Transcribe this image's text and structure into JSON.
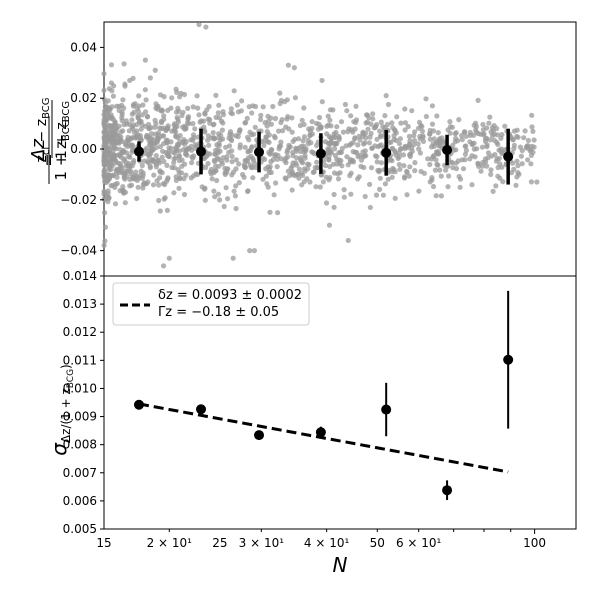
{
  "colors": {
    "scatter": "#9a9a9a",
    "points": "#000000",
    "fit_line": "#000000",
    "legend_border": "#cccccc"
  },
  "chart_data": [
    {
      "type": "scatter",
      "panel": "top",
      "xscale": "log",
      "xlim": [
        15,
        120
      ],
      "ylim": [
        -0.05,
        0.05
      ],
      "yticks": [
        "−0.04",
        "−0.02",
        "0.00",
        "0.02",
        "0.04"
      ],
      "ylabel": "Δz / (1 + z_BCG) = (z_cl − z_BCG) / (1 + z_BCG)",
      "scatter_note": "dense grey point cloud of individual cluster members, spread narrowing with N",
      "binned_points": {
        "x": [
          17.5,
          23,
          29.7,
          39,
          52,
          68,
          89
        ],
        "y": [
          -0.001,
          -0.001,
          -0.0012,
          -0.0018,
          -0.0015,
          -0.0004,
          -0.003
        ],
        "err": [
          0.004,
          0.009,
          0.008,
          0.008,
          0.009,
          0.006,
          0.011
        ]
      },
      "scatter_points": {
        "x": [
          15.5,
          16.8,
          18.0,
          18.4,
          18.8,
          19.5,
          20.0,
          22.8,
          23.5,
          26.5,
          28.5,
          29.1,
          33.8,
          34.7,
          39.2,
          40.5,
          44.0,
          48.5,
          52.0,
          57.0,
          61.0,
          63.0,
          65.0,
          70.5,
          74.0,
          80.0,
          92.5,
          101.0
        ],
        "y": [
          0.026,
          0.027,
          0.035,
          0.028,
          0.031,
          -0.046,
          -0.043,
          0.049,
          0.048,
          -0.043,
          -0.04,
          -0.04,
          0.033,
          0.032,
          0.027,
          -0.03,
          -0.036,
          -0.023,
          0.021,
          -0.018,
          0.007,
          0.006,
          0.013,
          0.006,
          0.005,
          0.006,
          -0.011,
          -0.013
        ]
      }
    },
    {
      "type": "line",
      "panel": "bottom",
      "xscale": "log",
      "xlim": [
        15,
        120
      ],
      "ylim": [
        0.005,
        0.014
      ],
      "yticks": [
        "0.005",
        "0.006",
        "0.007",
        "0.008",
        "0.009",
        "0.010",
        "0.011",
        "0.012",
        "0.013",
        "0.014"
      ],
      "ylabel": "σ_Δz/(1+z_BCG)",
      "xlabel": "N",
      "xtick_labels": [
        {
          "x": 15,
          "text": "15"
        },
        {
          "x": 20,
          "text": "2 × 10¹"
        },
        {
          "x": 25,
          "text": "25"
        },
        {
          "x": 30,
          "text": "3 × 10¹"
        },
        {
          "x": 40,
          "text": "4 × 10¹"
        },
        {
          "x": 50,
          "text": "50"
        },
        {
          "x": 60,
          "text": "6 × 10¹"
        },
        {
          "x": 100,
          "text": "100"
        }
      ],
      "series": [
        {
          "name": "δ_z = 0.0093 ± 0.0002, Γ_z = −0.18 ± 0.05",
          "style": "dashed",
          "x": [
            17.5,
            89
          ],
          "y": [
            0.00945,
            0.00703
          ]
        }
      ],
      "points": {
        "x": [
          17.5,
          23,
          29.7,
          39,
          52,
          68,
          89
        ],
        "y": [
          0.00942,
          0.00926,
          0.00834,
          0.00844,
          0.00925,
          0.00638,
          0.01102
        ],
        "err": [
          5e-05,
          0.00015,
          0.00015,
          0.0002,
          0.00095,
          0.00035,
          0.00245
        ]
      },
      "legend": {
        "placement": "top-left",
        "line1": "δz = 0.0093 ± 0.0002",
        "line2": "Γz = −0.18 ± 0.05"
      }
    }
  ]
}
